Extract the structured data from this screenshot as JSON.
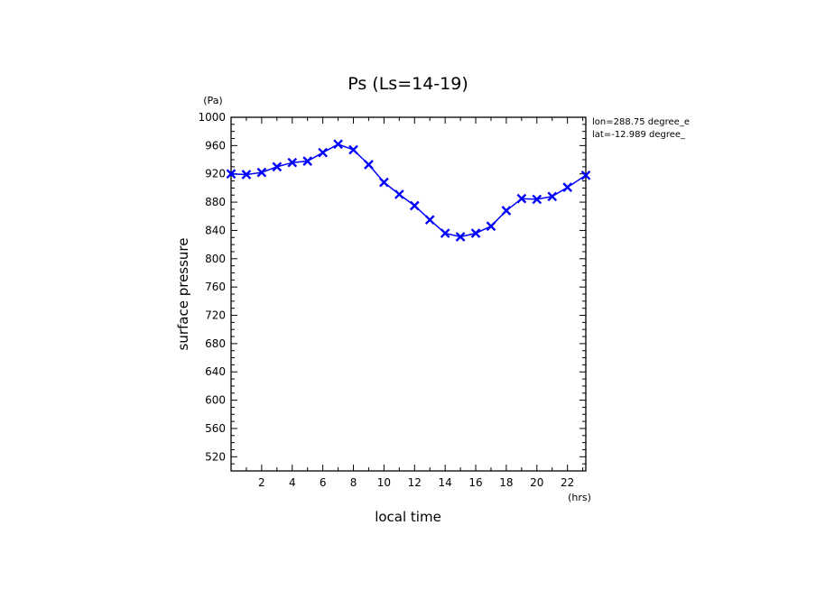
{
  "chart_data": {
    "type": "line",
    "title": "Ps (Ls=14-19)",
    "xlabel": "local time",
    "ylabel": "surface pressure",
    "x_unit": "(hrs)",
    "y_unit": "(Pa)",
    "annotations": [
      "lon=288.75 degree_e",
      "lat=-12.989 degree_"
    ],
    "xlim": [
      0,
      23.2
    ],
    "ylim": [
      500,
      1000
    ],
    "x_ticks": [
      2,
      4,
      6,
      8,
      10,
      12,
      14,
      16,
      18,
      20,
      22
    ],
    "y_ticks": [
      520,
      560,
      600,
      640,
      680,
      720,
      760,
      800,
      840,
      880,
      920,
      960,
      1000
    ],
    "grid": false,
    "legend": "none",
    "colors": {
      "series": "#0000ff",
      "axes": "#000000"
    },
    "series": [
      {
        "x": [
          0,
          1,
          2,
          3,
          4,
          5,
          6,
          7,
          8,
          9,
          10,
          11,
          12,
          13,
          14,
          15,
          16,
          17,
          18,
          19,
          20,
          21,
          22,
          23.2
        ],
        "values": [
          920,
          919,
          922,
          930,
          936,
          938,
          950,
          962,
          954,
          933,
          908,
          891,
          875,
          855,
          836,
          831,
          836,
          846,
          868,
          885,
          884,
          888,
          901,
          918
        ],
        "marker": "x"
      }
    ]
  }
}
